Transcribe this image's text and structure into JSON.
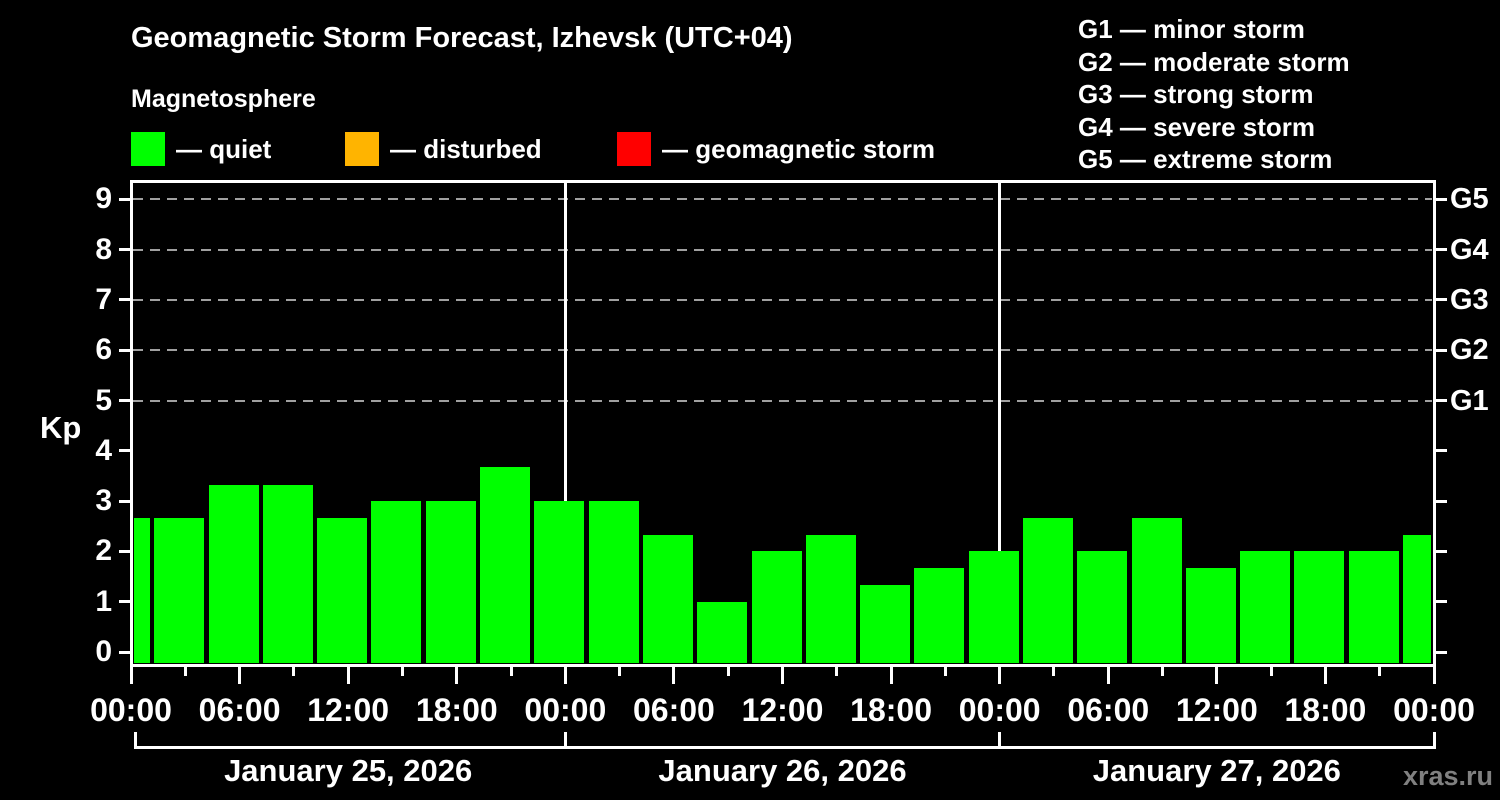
{
  "header": {
    "title": "Geomagnetic Storm Forecast, Izhevsk (UTC+04)",
    "subtitle": "Magnetosphere"
  },
  "legend": {
    "items": [
      {
        "label": "— quiet",
        "color": "#00ff00"
      },
      {
        "label": "— disturbed",
        "color": "#ffb400"
      },
      {
        "label": "— geomagnetic storm",
        "color": "#ff0000"
      }
    ]
  },
  "g_legend": {
    "items": [
      "G1 — minor storm",
      "G2 — moderate storm",
      "G3 — strong storm",
      "G4 — severe storm",
      "G5 — extreme storm"
    ]
  },
  "watermark": {
    "text": "xras.ru",
    "color": "#808080"
  },
  "chart_data": {
    "type": "bar",
    "title": "Geomagnetic Storm Forecast, Izhevsk (UTC+04)",
    "subtitle": "Magnetosphere",
    "ylabel": "Kp",
    "ylim": [
      -0.25,
      9.4
    ],
    "yticks": [
      0,
      1,
      2,
      3,
      4,
      5,
      6,
      7,
      8,
      9
    ],
    "grid_levels_kp": [
      5,
      6,
      7,
      8,
      9
    ],
    "right_axis_labels": [
      {
        "kp": 5,
        "label": "G1"
      },
      {
        "kp": 6,
        "label": "G2"
      },
      {
        "kp": 7,
        "label": "G3"
      },
      {
        "kp": 8,
        "label": "G4"
      },
      {
        "kp": 9,
        "label": "G5"
      }
    ],
    "x_range_hours": [
      0,
      72
    ],
    "bar_step_hours": 3,
    "major_tick_hours": 6,
    "minor_tick_hours": 3,
    "x_tick_labels": [
      "00:00",
      "06:00",
      "12:00",
      "18:00",
      "00:00",
      "06:00",
      "12:00",
      "18:00",
      "00:00",
      "06:00",
      "12:00",
      "18:00",
      "00:00"
    ],
    "days": [
      "January 25, 2026",
      "January 26, 2026",
      "January 27, 2026"
    ],
    "times_hours": [
      0,
      3,
      6,
      9,
      12,
      15,
      18,
      21,
      24,
      27,
      30,
      33,
      36,
      39,
      42,
      45,
      48,
      51,
      54,
      57,
      60,
      63,
      66,
      69,
      72
    ],
    "values": [
      2.67,
      2.67,
      3.33,
      3.33,
      2.67,
      3.0,
      3.0,
      3.67,
      3.0,
      3.0,
      2.33,
      1.0,
      2.0,
      2.33,
      1.33,
      1.67,
      2.0,
      2.67,
      2.0,
      2.67,
      1.67,
      2.0,
      2.0,
      2.0,
      2.33
    ],
    "color_rules": {
      "quiet_below_kp": 4,
      "disturbed_below_kp": 5
    },
    "colors": {
      "quiet": "#00ff00",
      "disturbed": "#ffb400",
      "storm": "#ff0000",
      "axis": "#ffffff",
      "grid": "#a0a0a0",
      "background": "#000000"
    },
    "legend_position": "top-left",
    "grid": "dashed horizontal at Kp 5-9 only"
  }
}
